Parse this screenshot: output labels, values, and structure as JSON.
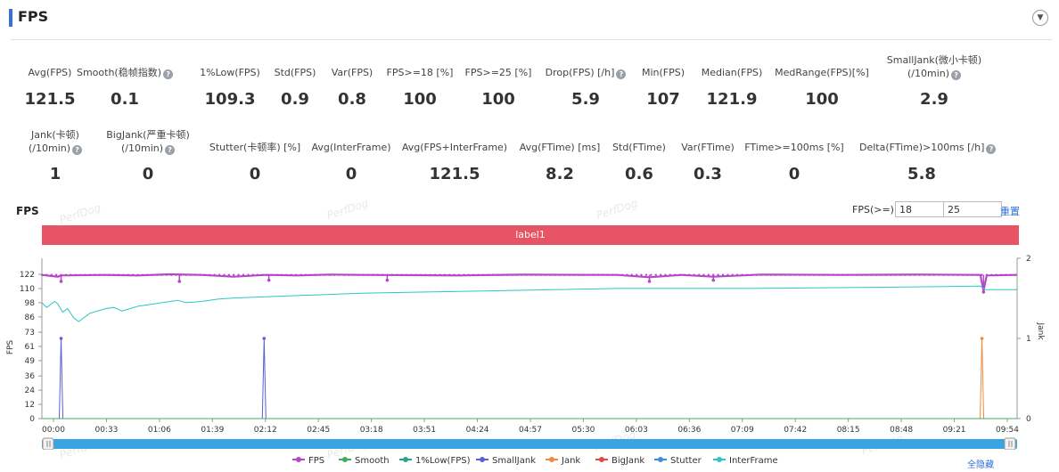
{
  "header": {
    "title": "FPS",
    "collapse_icon": "chevron-down-icon"
  },
  "metrics_row1": [
    {
      "label": "Avg(FPS)",
      "value": "121.5",
      "help": false
    },
    {
      "label": "Smooth(稳帧指数)",
      "value": "0.1",
      "help": true
    },
    {
      "label": "1%Low(FPS)",
      "value": "109.3",
      "help": false
    },
    {
      "label": "Std(FPS)",
      "value": "0.9",
      "help": false
    },
    {
      "label": "Var(FPS)",
      "value": "0.8",
      "help": false
    },
    {
      "label": "FPS>=18 [%]",
      "value": "100",
      "help": false
    },
    {
      "label": "FPS>=25 [%]",
      "value": "100",
      "help": false
    },
    {
      "label": "Drop(FPS) [/h]",
      "value": "5.9",
      "help": true
    },
    {
      "label": "Min(FPS)",
      "value": "107",
      "help": false
    },
    {
      "label": "Median(FPS)",
      "value": "121.9",
      "help": false
    },
    {
      "label": "MedRange(FPS)[%]",
      "value": "100",
      "help": false
    },
    {
      "label": "SmallJank(微小卡顿)",
      "label2": "(/10min)",
      "value": "2.9",
      "help": true
    }
  ],
  "metrics_row2": [
    {
      "label": "Jank(卡顿)",
      "label2": "(/10min)",
      "value": "1",
      "help": true
    },
    {
      "label": "BigJank(严重卡顿)",
      "label2": "(/10min)",
      "value": "0",
      "help": true
    },
    {
      "label": "Stutter(卡顿率) [%]",
      "value": "0",
      "help": false
    },
    {
      "label": "Avg(InterFrame)",
      "value": "0",
      "help": false
    },
    {
      "label": "Avg(FPS+InterFrame)",
      "value": "121.5",
      "help": false
    },
    {
      "label": "Avg(FTime) [ms]",
      "value": "8.2",
      "help": false
    },
    {
      "label": "Std(FTime)",
      "value": "0.6",
      "help": false
    },
    {
      "label": "Var(FTime)",
      "value": "0.3",
      "help": false
    },
    {
      "label": "FTime>=100ms [%]",
      "value": "0",
      "help": false
    },
    {
      "label": "Delta(FTime)>100ms [/h]",
      "value": "5.8",
      "help": true
    }
  ],
  "chart_section": {
    "title": "FPS",
    "watermark": "PerfDog",
    "threshold_label": "FPS(>=)",
    "threshold_values": [
      "18",
      "25"
    ],
    "reset_label": "重置",
    "band_label": "label1",
    "hide_all_label": "全隐藏"
  },
  "chart_data": {
    "type": "line",
    "ylabel": "FPS",
    "y2label": "Jank",
    "y_ticks": [
      "0",
      "12",
      "24",
      "36",
      "49",
      "61",
      "73",
      "86",
      "98",
      "110",
      "122"
    ],
    "y_range": [
      0,
      122
    ],
    "y2_ticks": [
      "0",
      "1",
      "2"
    ],
    "y2_range": [
      0,
      2
    ],
    "x_ticks": [
      "00:00",
      "00:33",
      "01:06",
      "01:39",
      "02:12",
      "02:45",
      "03:18",
      "03:51",
      "04:24",
      "04:57",
      "05:30",
      "06:03",
      "06:36",
      "07:09",
      "07:42",
      "08:15",
      "08:48",
      "09:21",
      "09:54"
    ],
    "x_range_seconds": [
      0,
      610
    ],
    "legend": [
      "FPS",
      "Smooth",
      "1%Low(FPS)",
      "SmallJank",
      "Jank",
      "BigJank",
      "Stutter",
      "InterFrame"
    ],
    "series": [
      {
        "name": "FPS",
        "color": "#b548c6",
        "points": [
          [
            0,
            121.5
          ],
          [
            10,
            120
          ],
          [
            12,
            121
          ],
          [
            40,
            121.5
          ],
          [
            60,
            121
          ],
          [
            80,
            122
          ],
          [
            100,
            121.5
          ],
          [
            120,
            120
          ],
          [
            140,
            121.5
          ],
          [
            160,
            121
          ],
          [
            180,
            121.8
          ],
          [
            200,
            121.5
          ],
          [
            260,
            121
          ],
          [
            300,
            121.7
          ],
          [
            360,
            121.5
          ],
          [
            380,
            119.5
          ],
          [
            400,
            121.5
          ],
          [
            420,
            120
          ],
          [
            450,
            121.8
          ],
          [
            500,
            121.5
          ],
          [
            550,
            121.8
          ],
          [
            587,
            121.5
          ],
          [
            589,
            108
          ],
          [
            591,
            121
          ],
          [
            610,
            121.5
          ]
        ],
        "dips": [
          [
            12,
            116
          ],
          [
            86,
            116
          ],
          [
            142,
            117
          ],
          [
            216,
            117
          ],
          [
            380,
            116
          ],
          [
            420,
            117
          ],
          [
            589,
            107
          ]
        ]
      },
      {
        "name": "1%Low(FPS)",
        "color": "#2ec4c4",
        "points": [
          [
            0,
            98
          ],
          [
            3,
            94
          ],
          [
            8,
            99
          ],
          [
            10,
            97
          ],
          [
            13,
            90
          ],
          [
            16,
            93
          ],
          [
            20,
            85
          ],
          [
            23,
            82
          ],
          [
            30,
            89
          ],
          [
            40,
            93
          ],
          [
            45,
            94
          ],
          [
            50,
            91
          ],
          [
            60,
            95
          ],
          [
            70,
            97
          ],
          [
            85,
            100
          ],
          [
            90,
            98
          ],
          [
            100,
            99
          ],
          [
            110,
            101
          ],
          [
            120,
            102
          ],
          [
            140,
            103
          ],
          [
            160,
            104
          ],
          [
            180,
            105
          ],
          [
            200,
            106
          ],
          [
            240,
            107
          ],
          [
            280,
            108
          ],
          [
            320,
            109
          ],
          [
            360,
            110
          ],
          [
            400,
            110
          ],
          [
            440,
            110
          ],
          [
            480,
            110.5
          ],
          [
            520,
            111
          ],
          [
            560,
            111.5
          ],
          [
            587,
            112
          ],
          [
            590,
            109
          ],
          [
            600,
            109
          ],
          [
            610,
            109
          ]
        ]
      },
      {
        "name": "SmallJank",
        "color": "#5b5fd8",
        "axis": "y2",
        "spikes": [
          [
            12,
            1
          ],
          [
            139,
            1
          ]
        ]
      },
      {
        "name": "Jank",
        "color": "#f08a3c",
        "axis": "y2",
        "spikes": [
          [
            588,
            1
          ]
        ]
      },
      {
        "name": "Smooth",
        "color": "#3fae5b",
        "points": [
          [
            0,
            0
          ],
          [
            610,
            0
          ]
        ]
      }
    ]
  }
}
